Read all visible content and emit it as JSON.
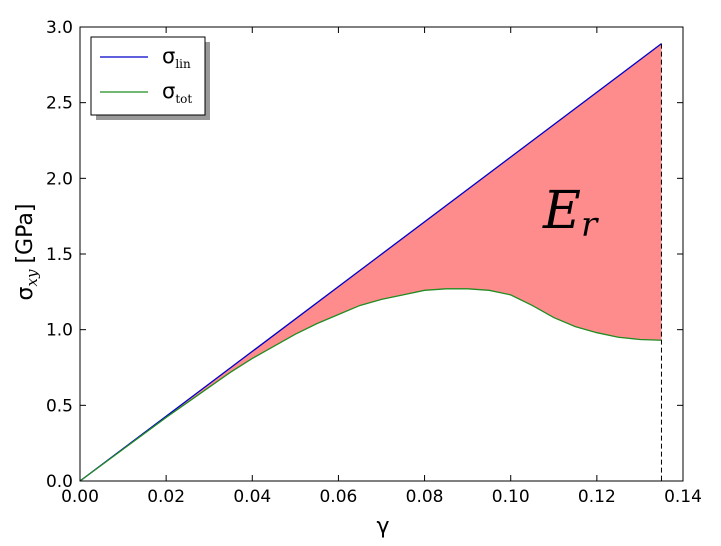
{
  "chart_data": {
    "type": "line",
    "xlabel": "γ",
    "ylabel": "σ",
    "ylabel_sub": "xy",
    "ylabel_unit": "[GPa]",
    "xlim": [
      0.0,
      0.14
    ],
    "ylim": [
      0.0,
      3.0
    ],
    "x_ticks": [
      "0.00",
      "0.02",
      "0.04",
      "0.06",
      "0.08",
      "0.10",
      "0.12",
      "0.14"
    ],
    "y_ticks": [
      "0.0",
      "0.5",
      "1.0",
      "1.5",
      "2.0",
      "2.5",
      "3.0"
    ],
    "grid": false,
    "legend_position": "top-left",
    "series": [
      {
        "name": "σ",
        "name_sub": "lin",
        "color": "#0000cc",
        "x": [
          0.0,
          0.135
        ],
        "y": [
          0.0,
          2.89
        ]
      },
      {
        "name": "σ",
        "name_sub": "tot",
        "color": "#228b22",
        "x": [
          0.0,
          0.005,
          0.01,
          0.015,
          0.02,
          0.025,
          0.03,
          0.035,
          0.04,
          0.045,
          0.05,
          0.055,
          0.06,
          0.065,
          0.07,
          0.075,
          0.08,
          0.085,
          0.09,
          0.095,
          0.1,
          0.105,
          0.11,
          0.115,
          0.12,
          0.125,
          0.13,
          0.135
        ],
        "y": [
          0.0,
          0.105,
          0.21,
          0.315,
          0.42,
          0.52,
          0.62,
          0.72,
          0.81,
          0.89,
          0.97,
          1.04,
          1.1,
          1.16,
          1.2,
          1.23,
          1.26,
          1.27,
          1.27,
          1.26,
          1.23,
          1.16,
          1.08,
          1.02,
          0.98,
          0.95,
          0.935,
          0.93
        ]
      }
    ],
    "fill_between": {
      "color": "#ff8c8c",
      "label": "E",
      "label_sub": "r"
    },
    "vline": {
      "x": 0.135,
      "style": "dashed",
      "color": "#000000"
    }
  }
}
